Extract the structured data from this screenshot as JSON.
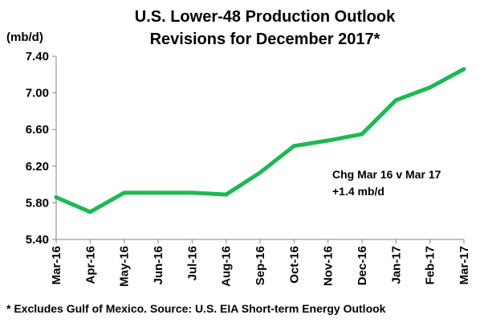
{
  "title_line1": "U.S. Lower-48 Production Outlook",
  "title_line2": "Revisions for December 2017*",
  "unit_label": "(mb/d)",
  "annotation_line1": "Chg Mar 16 v Mar 17",
  "annotation_line2": "+1.4 mb/d",
  "footnote": "* Excludes Gulf of Mexico. Source: U.S. EIA Short-term Energy Outlook",
  "chart_data": {
    "type": "line",
    "title": "U.S. Lower-48 Production Outlook Revisions for December 2017*",
    "ylabel": "(mb/d)",
    "xlabel": "",
    "categories": [
      "Mar-16",
      "Apr-16",
      "May-16",
      "Jun-16",
      "Jul-16",
      "Aug-16",
      "Sep-16",
      "Oct-16",
      "Nov-16",
      "Dec-16",
      "Jan-17",
      "Feb-17",
      "Mar-17"
    ],
    "series": [
      {
        "values": [
          5.86,
          5.7,
          5.91,
          5.91,
          5.91,
          5.89,
          6.13,
          6.42,
          6.48,
          6.55,
          6.92,
          7.06,
          7.26
        ]
      }
    ],
    "ylim": [
      5.4,
      7.4
    ],
    "yticks": [
      "5.40",
      "5.80",
      "6.20",
      "6.60",
      "7.00",
      "7.40"
    ],
    "grid": false,
    "line_color": "#1DB954"
  }
}
